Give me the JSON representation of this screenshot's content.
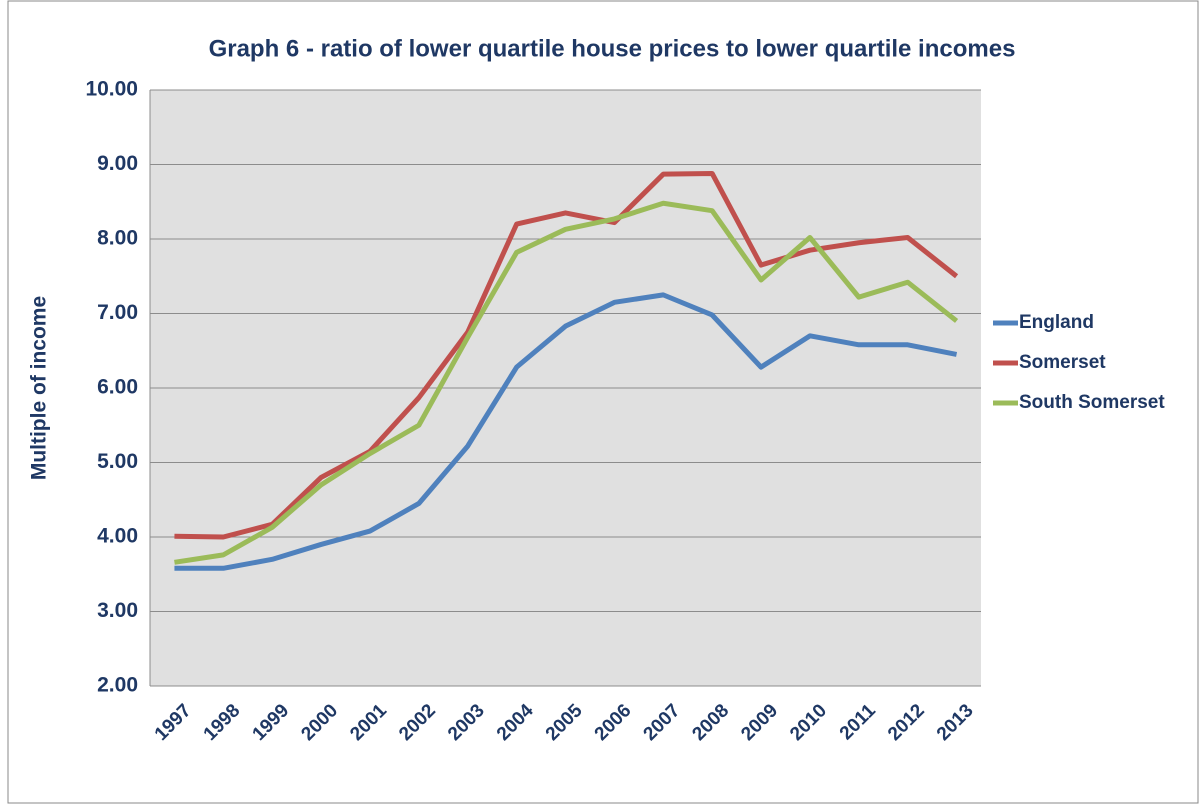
{
  "chart_data": {
    "type": "line",
    "title": "Graph 6 - ratio of lower quartile house prices to lower quartile incomes",
    "y_label": "Multiple of income",
    "categories": [
      "1997",
      "1998",
      "1999",
      "2000",
      "2001",
      "2002",
      "2003",
      "2004",
      "2005",
      "2006",
      "2007",
      "2008",
      "2009",
      "2010",
      "2011",
      "2012",
      "2013"
    ],
    "series": [
      {
        "name": "England",
        "color": "#4f81bd",
        "values": [
          3.58,
          3.58,
          3.7,
          3.9,
          4.08,
          4.45,
          5.22,
          6.28,
          6.83,
          7.15,
          7.25,
          6.98,
          6.28,
          6.7,
          6.58,
          6.58,
          6.45
        ]
      },
      {
        "name": "Somerset",
        "color": "#c0504d",
        "values": [
          4.01,
          4.0,
          4.17,
          4.8,
          5.15,
          5.87,
          6.75,
          8.2,
          8.35,
          8.22,
          8.87,
          8.88,
          7.65,
          7.85,
          7.95,
          8.02,
          7.5
        ]
      },
      {
        "name": "South Somerset",
        "color": "#9bbb59",
        "values": [
          3.66,
          3.76,
          4.13,
          4.7,
          5.12,
          5.5,
          6.68,
          7.82,
          8.13,
          8.27,
          8.48,
          8.38,
          7.45,
          8.02,
          7.22,
          7.42,
          6.9
        ]
      }
    ],
    "ylim": [
      2,
      10
    ],
    "yticks": [
      {
        "value": 2,
        "label": "2.00"
      },
      {
        "value": 3,
        "label": "3.00"
      },
      {
        "value": 4,
        "label": "4.00"
      },
      {
        "value": 5,
        "label": "5.00"
      },
      {
        "value": 6,
        "label": "6.00"
      },
      {
        "value": 7,
        "label": "7.00"
      },
      {
        "value": 8,
        "label": "8.00"
      },
      {
        "value": 9,
        "label": "9.00"
      },
      {
        "value": 10,
        "label": "10.00"
      }
    ],
    "grid": true,
    "legend": "right"
  }
}
